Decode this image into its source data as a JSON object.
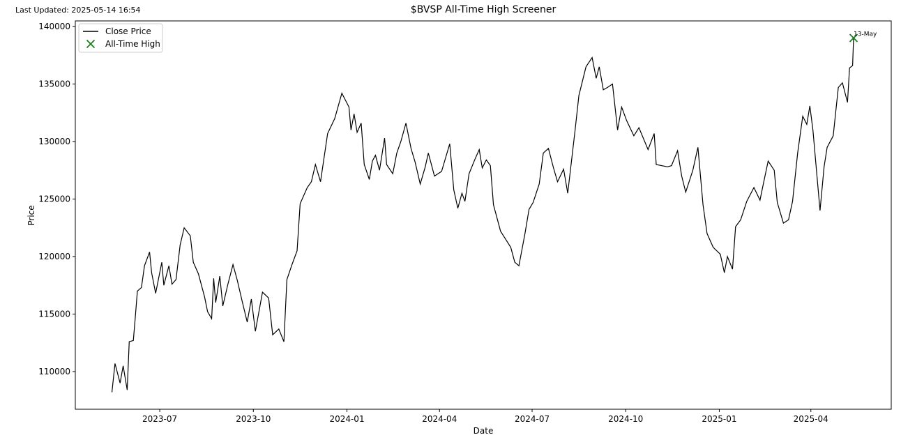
{
  "chart_data": {
    "type": "line",
    "title": "$BVSP All-Time High Screener",
    "last_updated": "Last Updated: 2025-05-14 16:54",
    "xlabel": "Date",
    "ylabel": "Price",
    "legend": "upper left",
    "xlim": [
      "2023-04-09",
      "2025-06-19"
    ],
    "ylim": [
      106727,
      140485
    ],
    "xticks": [
      {
        "value": "2023-07-01",
        "label": "2023-07"
      },
      {
        "value": "2023-10-01",
        "label": "2023-10"
      },
      {
        "value": "2024-01-01",
        "label": "2024-01"
      },
      {
        "value": "2024-04-01",
        "label": "2024-04"
      },
      {
        "value": "2024-07-01",
        "label": "2024-07"
      },
      {
        "value": "2024-10-01",
        "label": "2024-10"
      },
      {
        "value": "2025-01-01",
        "label": "2025-01"
      },
      {
        "value": "2025-04-01",
        "label": "2025-04"
      }
    ],
    "yticks": [
      110000,
      115000,
      120000,
      125000,
      130000,
      135000,
      140000
    ],
    "x": [
      "2023-05-15",
      "2023-05-18",
      "2023-05-23",
      "2023-05-26",
      "2023-05-30",
      "2023-06-01",
      "2023-06-05",
      "2023-06-07",
      "2023-06-09",
      "2023-06-13",
      "2023-06-16",
      "2023-06-21",
      "2023-06-23",
      "2023-06-27",
      "2023-07-03",
      "2023-07-05",
      "2023-07-10",
      "2023-07-13",
      "2023-07-17",
      "2023-07-21",
      "2023-07-25",
      "2023-07-31",
      "2023-08-03",
      "2023-08-08",
      "2023-08-14",
      "2023-08-17",
      "2023-08-21",
      "2023-08-23",
      "2023-08-25",
      "2023-08-29",
      "2023-09-01",
      "2023-09-06",
      "2023-09-11",
      "2023-09-15",
      "2023-09-20",
      "2023-09-25",
      "2023-09-29",
      "2023-10-03",
      "2023-10-10",
      "2023-10-16",
      "2023-10-20",
      "2023-10-26",
      "2023-10-31",
      "2023-11-03",
      "2023-11-08",
      "2023-11-13",
      "2023-11-16",
      "2023-11-23",
      "2023-11-27",
      "2023-12-01",
      "2023-12-06",
      "2023-12-13",
      "2023-12-20",
      "2023-12-27",
      "2024-01-03",
      "2024-01-05",
      "2024-01-08",
      "2024-01-11",
      "2024-01-15",
      "2024-01-18",
      "2024-01-23",
      "2024-01-26",
      "2024-01-29",
      "2024-02-02",
      "2024-02-07",
      "2024-02-09",
      "2024-02-15",
      "2024-02-19",
      "2024-02-23",
      "2024-02-28",
      "2024-03-04",
      "2024-03-08",
      "2024-03-13",
      "2024-03-18",
      "2024-03-21",
      "2024-03-27",
      "2024-04-03",
      "2024-04-11",
      "2024-04-15",
      "2024-04-19",
      "2024-04-23",
      "2024-04-26",
      "2024-04-30",
      "2024-05-06",
      "2024-05-10",
      "2024-05-13",
      "2024-05-17",
      "2024-05-21",
      "2024-05-24",
      "2024-05-31",
      "2024-06-05",
      "2024-06-10",
      "2024-06-14",
      "2024-06-18",
      "2024-06-24",
      "2024-06-28",
      "2024-07-02",
      "2024-07-08",
      "2024-07-12",
      "2024-07-17",
      "2024-07-22",
      "2024-07-26",
      "2024-08-01",
      "2024-08-05",
      "2024-08-12",
      "2024-08-16",
      "2024-08-23",
      "2024-08-29",
      "2024-09-02",
      "2024-09-05",
      "2024-09-09",
      "2024-09-13",
      "2024-09-18",
      "2024-09-23",
      "2024-09-27",
      "2024-10-02",
      "2024-10-09",
      "2024-10-14",
      "2024-10-23",
      "2024-10-29",
      "2024-10-31",
      "2024-11-11",
      "2024-11-15",
      "2024-11-21",
      "2024-11-25",
      "2024-11-29",
      "2024-12-06",
      "2024-12-11",
      "2024-12-16",
      "2024-12-20",
      "2024-12-26",
      "2025-01-02",
      "2025-01-06",
      "2025-01-09",
      "2025-01-14",
      "2025-01-17",
      "2025-01-22",
      "2025-01-28",
      "2025-02-04",
      "2025-02-10",
      "2025-02-13",
      "2025-02-18",
      "2025-02-24",
      "2025-02-27",
      "2025-03-05",
      "2025-03-10",
      "2025-03-14",
      "2025-03-19",
      "2025-03-24",
      "2025-03-28",
      "2025-03-31",
      "2025-04-03",
      "2025-04-07",
      "2025-04-10",
      "2025-04-14",
      "2025-04-17",
      "2025-04-23",
      "2025-04-28",
      "2025-05-02",
      "2025-05-07",
      "2025-05-09",
      "2025-05-12",
      "2025-05-13"
    ],
    "series": [
      {
        "name": "Close Price",
        "color": "#000000",
        "values": [
          108200,
          110700,
          109000,
          110500,
          108400,
          112600,
          112700,
          114800,
          117000,
          117300,
          119200,
          120400,
          118600,
          116800,
          119500,
          117500,
          119200,
          117600,
          118000,
          121000,
          122500,
          121800,
          119500,
          118500,
          116500,
          115200,
          114600,
          118100,
          116000,
          118300,
          115700,
          117600,
          119300,
          118000,
          116100,
          114300,
          116300,
          113500,
          116900,
          116400,
          113200,
          113700,
          112600,
          118000,
          119300,
          120500,
          124600,
          126000,
          126500,
          128000,
          126500,
          130700,
          132000,
          134200,
          133000,
          131000,
          132400,
          130800,
          131600,
          128000,
          126700,
          128300,
          128800,
          127500,
          130300,
          128000,
          127200,
          129000,
          130000,
          131600,
          129400,
          128200,
          126300,
          127800,
          129000,
          127000,
          127400,
          129800,
          125800,
          124200,
          125500,
          124800,
          127200,
          128500,
          129300,
          127700,
          128400,
          127900,
          124500,
          122200,
          121500,
          120800,
          119500,
          119200,
          122000,
          124100,
          124700,
          126300,
          129000,
          129400,
          127700,
          126500,
          127600,
          125500,
          130800,
          134000,
          136500,
          137300,
          135500,
          136500,
          134500,
          134700,
          135000,
          131000,
          133000,
          131800,
          130500,
          131200,
          129300,
          130700,
          128000,
          127800,
          127900,
          129200,
          127000,
          125600,
          127500,
          129500,
          124500,
          122000,
          120800,
          120200,
          118600,
          120000,
          118900,
          122600,
          123200,
          124800,
          126000,
          124900,
          126200,
          128300,
          127500,
          124700,
          122900,
          123200,
          124800,
          129000,
          132200,
          131500,
          133100,
          131000,
          127000,
          124000,
          127800,
          129500,
          130500,
          134700,
          135100,
          133400,
          136400,
          136600,
          139000
        ]
      },
      {
        "name": "All-Time High",
        "type": "scatter",
        "color": "#1a7f1a",
        "x": [
          "2025-05-13"
        ],
        "values": [
          139000
        ],
        "annotations": [
          "13-May"
        ]
      }
    ]
  }
}
